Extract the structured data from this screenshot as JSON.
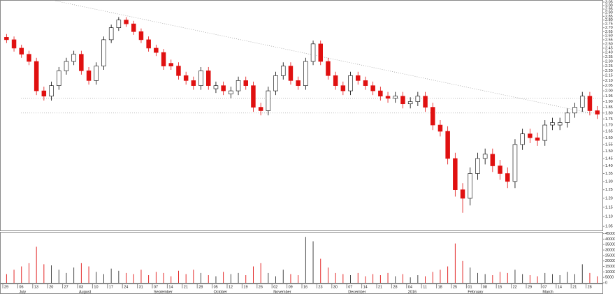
{
  "chart_data": {
    "type": "candlestick",
    "scale": "log",
    "categories": [
      "29",
      null,
      "06",
      null,
      "13",
      null,
      "20",
      null,
      "27",
      null,
      "03",
      null,
      "10",
      null,
      "17",
      null,
      "24",
      null,
      "31",
      null,
      "07",
      null,
      "14",
      null,
      "21",
      null,
      "28",
      null,
      "05",
      null,
      "12",
      null,
      "19",
      null,
      "26",
      null,
      "02",
      null,
      "09",
      null,
      "16",
      null,
      "23",
      null,
      "30",
      null,
      "07",
      null,
      "14",
      null,
      "21",
      null,
      "28",
      null,
      "04",
      null,
      "11",
      null,
      "18",
      null,
      "25",
      null,
      "01",
      null,
      "08",
      null,
      "15",
      null,
      "22",
      null,
      "29",
      null,
      "07",
      null,
      "14",
      null,
      "21",
      null,
      "28",
      null
    ],
    "months": [
      null,
      null,
      "July",
      null,
      null,
      null,
      null,
      null,
      null,
      null,
      "August",
      null,
      null,
      null,
      null,
      null,
      null,
      null,
      null,
      null,
      "September",
      null,
      null,
      null,
      null,
      null,
      null,
      null,
      "October",
      null,
      null,
      null,
      null,
      null,
      null,
      null,
      "November",
      null,
      null,
      null,
      null,
      null,
      null,
      null,
      null,
      null,
      "December",
      null,
      null,
      null,
      null,
      null,
      null,
      null,
      "2016",
      null,
      null,
      null,
      null,
      null,
      null,
      null,
      "February",
      null,
      null,
      null,
      null,
      null,
      null,
      null,
      null,
      null,
      "March",
      null,
      null,
      null,
      null,
      null,
      null,
      null
    ],
    "open": [
      2.58,
      2.55,
      2.45,
      2.38,
      2.3,
      2.0,
      1.95,
      2.05,
      2.2,
      2.3,
      2.38,
      2.2,
      2.1,
      2.25,
      2.55,
      2.7,
      2.8,
      2.75,
      2.65,
      2.55,
      2.45,
      2.4,
      2.28,
      2.25,
      2.15,
      2.1,
      2.05,
      2.2,
      2.02,
      2.05,
      1.97,
      2.0,
      2.1,
      2.05,
      1.85,
      1.82,
      2.0,
      2.15,
      2.25,
      2.1,
      2.05,
      2.3,
      2.5,
      2.3,
      2.15,
      2.05,
      2.0,
      2.15,
      2.1,
      2.05,
      2.0,
      1.95,
      1.93,
      1.95,
      1.88,
      1.9,
      1.95,
      1.85,
      1.7,
      1.65,
      1.45,
      1.25,
      1.2,
      1.35,
      1.45,
      1.48,
      1.4,
      1.35,
      1.3,
      1.55,
      1.63,
      1.6,
      1.58,
      1.7,
      1.7,
      1.72,
      1.8,
      1.85,
      1.95,
      1.82
    ],
    "high": [
      2.62,
      2.59,
      2.49,
      2.42,
      2.34,
      2.04,
      2.09,
      2.24,
      2.34,
      2.42,
      2.42,
      2.24,
      2.29,
      2.59,
      2.74,
      2.84,
      2.84,
      2.79,
      2.69,
      2.59,
      2.49,
      2.44,
      2.32,
      2.29,
      2.19,
      2.14,
      2.24,
      2.24,
      2.09,
      2.09,
      2.04,
      2.14,
      2.14,
      2.09,
      1.89,
      2.04,
      2.19,
      2.29,
      2.29,
      2.14,
      2.34,
      2.54,
      2.54,
      2.34,
      2.19,
      2.09,
      2.19,
      2.19,
      2.14,
      2.09,
      2.04,
      1.99,
      1.99,
      1.99,
      1.94,
      1.99,
      1.99,
      1.89,
      1.74,
      1.69,
      1.49,
      1.29,
      1.39,
      1.49,
      1.52,
      1.52,
      1.44,
      1.39,
      1.59,
      1.67,
      1.67,
      1.64,
      1.74,
      1.76,
      1.76,
      1.84,
      1.89,
      1.99,
      1.99,
      1.86
    ],
    "low": [
      2.51,
      2.41,
      2.34,
      2.26,
      1.96,
      1.91,
      1.91,
      2.01,
      2.16,
      2.26,
      2.16,
      2.06,
      2.06,
      2.21,
      2.51,
      2.66,
      2.71,
      2.61,
      2.51,
      2.41,
      2.36,
      2.21,
      2.21,
      2.11,
      2.06,
      2.01,
      2.01,
      2.01,
      1.98,
      1.96,
      1.93,
      1.96,
      2.01,
      1.81,
      1.78,
      1.78,
      1.96,
      2.11,
      2.06,
      2.01,
      2.01,
      2.26,
      2.26,
      2.11,
      2.01,
      1.96,
      1.96,
      2.06,
      2.01,
      1.96,
      1.91,
      1.89,
      1.89,
      1.84,
      1.84,
      1.86,
      1.81,
      1.66,
      1.61,
      1.41,
      1.21,
      1.12,
      1.16,
      1.31,
      1.41,
      1.36,
      1.31,
      1.26,
      1.26,
      1.51,
      1.56,
      1.54,
      1.54,
      1.66,
      1.66,
      1.68,
      1.76,
      1.81,
      1.78,
      1.75
    ],
    "close": [
      2.55,
      2.45,
      2.38,
      2.3,
      2.0,
      1.95,
      2.05,
      2.2,
      2.3,
      2.38,
      2.2,
      2.1,
      2.25,
      2.55,
      2.7,
      2.8,
      2.75,
      2.65,
      2.55,
      2.45,
      2.4,
      2.25,
      2.25,
      2.15,
      2.1,
      2.05,
      2.2,
      2.05,
      2.05,
      2.0,
      2.0,
      2.1,
      2.05,
      1.85,
      1.82,
      2.0,
      2.15,
      2.25,
      2.1,
      2.05,
      2.3,
      2.5,
      2.3,
      2.15,
      2.05,
      2.0,
      2.15,
      2.1,
      2.05,
      2.0,
      1.95,
      1.93,
      1.95,
      1.88,
      1.9,
      1.95,
      1.85,
      1.7,
      1.65,
      1.45,
      1.25,
      1.2,
      1.35,
      1.45,
      1.48,
      1.4,
      1.35,
      1.3,
      1.55,
      1.63,
      1.6,
      1.58,
      1.7,
      1.72,
      1.72,
      1.8,
      1.85,
      1.95,
      1.82,
      1.79
    ],
    "volume": [
      8000,
      12000,
      15000,
      18000,
      33000,
      17000,
      16000,
      12000,
      9000,
      14000,
      18000,
      15000,
      10000,
      8000,
      13000,
      11000,
      9000,
      8000,
      12000,
      7000,
      10000,
      9000,
      6000,
      11000,
      8000,
      12000,
      9000,
      7000,
      6000,
      10000,
      8000,
      9000,
      7000,
      15000,
      18000,
      9000,
      6000,
      12000,
      8000,
      7000,
      42000,
      38000,
      22000,
      14000,
      9000,
      8000,
      7000,
      9000,
      6000,
      8000,
      7000,
      9000,
      6000,
      8000,
      5000,
      7000,
      6000,
      10000,
      12000,
      15000,
      36000,
      20000,
      14000,
      9000,
      8000,
      7000,
      10000,
      9000,
      12000,
      8000,
      7000,
      6000,
      9000,
      8000,
      7000,
      10000,
      8000,
      17000,
      9000,
      6000
    ],
    "up_color": "#ffffff",
    "down_color": "#e01010",
    "ylim": [
      1.03,
      3.08
    ],
    "yticks": [
      3.05,
      {
        "value": 3.0,
        "label": "3.00"
      },
      2.95,
      {
        "value": 2.9,
        "label": "2.90"
      },
      2.85,
      {
        "value": 2.8,
        "label": "2.80"
      },
      2.75,
      {
        "value": 2.7,
        "label": "2.70"
      },
      2.65,
      {
        "value": 2.6,
        "label": "2.60"
      },
      2.55,
      {
        "value": 2.5,
        "label": "2.50"
      },
      2.45,
      {
        "value": 2.4,
        "label": "2.40"
      },
      2.35,
      {
        "value": 2.3,
        "label": "2.30"
      },
      2.25,
      {
        "value": 2.2,
        "label": "2.20"
      },
      2.15,
      {
        "value": 2.1,
        "label": "2.10"
      },
      2.05,
      {
        "value": 2.0,
        "label": "2.00"
      },
      1.95,
      {
        "value": 1.9,
        "label": "1.90"
      },
      1.85,
      {
        "value": 1.8,
        "label": "1.80"
      },
      1.75,
      {
        "value": 1.7,
        "label": "1.70"
      },
      1.65,
      {
        "value": 1.6,
        "label": "1.60"
      },
      1.55,
      {
        "value": 1.5,
        "label": "1.50"
      },
      1.45,
      {
        "value": 1.4,
        "label": "1.40"
      },
      1.35,
      {
        "value": 1.3,
        "label": "1.30"
      },
      1.25,
      {
        "value": 1.2,
        "label": "1.20"
      },
      1.15,
      {
        "value": 1.1,
        "label": "1.10"
      },
      1.05
    ],
    "y2lim": [
      0,
      46000
    ],
    "y2ticks": [
      45000,
      40000,
      35000,
      30000,
      25000,
      20000,
      15000,
      10000,
      5000,
      0
    ],
    "horizontal_lines": [
      1.93,
      1.8
    ],
    "trendline": [
      3.15,
      1.8
    ]
  }
}
